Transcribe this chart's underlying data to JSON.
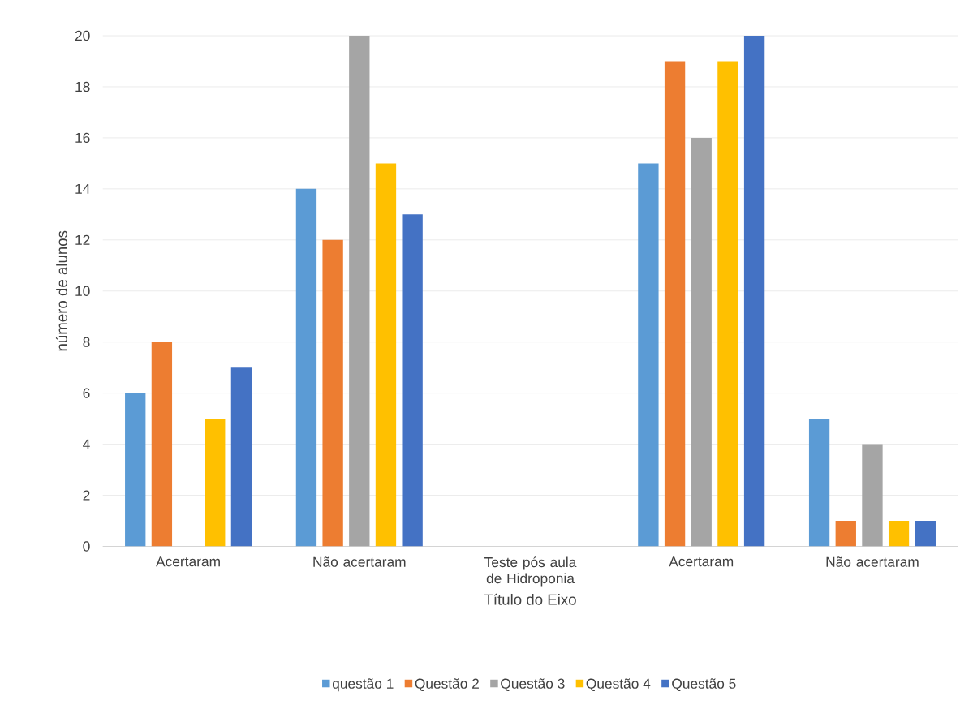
{
  "chart_data": {
    "type": "bar",
    "xlabel": "Título do Eixo",
    "ylabel": "número de alunos",
    "categories": [
      "Acertaram",
      "Não acertaram",
      "Teste pós aula de Hidroponia",
      "Acertaram",
      "Não acertaram"
    ],
    "series": [
      {
        "name": "questão 1",
        "color": "#5b9bd5",
        "values": [
          6,
          14,
          null,
          15,
          5
        ]
      },
      {
        "name": "Questão 2",
        "color": "#ed7d31",
        "values": [
          8,
          12,
          null,
          19,
          1
        ]
      },
      {
        "name": "Questão 3",
        "color": "#a5a5a5",
        "values": [
          null,
          20,
          null,
          16,
          4
        ]
      },
      {
        "name": "Questão 4",
        "color": "#ffc000",
        "values": [
          5,
          15,
          null,
          19,
          1
        ]
      },
      {
        "name": "Questão 5",
        "color": "#4472c4",
        "values": [
          7,
          13,
          null,
          20,
          1
        ]
      }
    ],
    "ylim": [
      0,
      20
    ],
    "yticks": [
      0,
      2,
      4,
      6,
      8,
      10,
      12,
      14,
      16,
      18,
      20
    ],
    "grid": "y",
    "legend": "bottom"
  }
}
